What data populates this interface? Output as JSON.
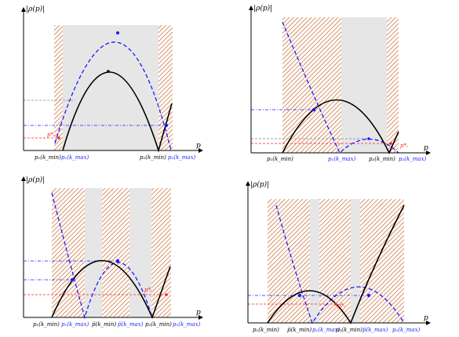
{
  "figure": {
    "panels": [
      {
        "id": "top-left",
        "ylabel": "|ρ(p)|",
        "xlabel": "p",
        "xticks": [
          {
            "text": "p₁(k_min)",
            "color": "#000000"
          },
          {
            "text": "p₁(k_max)",
            "color": "#1a1aff"
          },
          {
            "text": "p₂(k_min)",
            "color": "#000000"
          },
          {
            "text": "p₂(k_max)",
            "color": "#1a1aff"
          }
        ],
        "annotation": "p*ᵣ"
      },
      {
        "id": "top-right",
        "ylabel": "|ρ(p)|",
        "xlabel": "p",
        "xticks": [
          {
            "text": "p₁(k_min)",
            "color": "#000000"
          },
          {
            "text": "p₁(k_max)",
            "color": "#1a1aff"
          },
          {
            "text": "p₂(k_min)",
            "color": "#000000"
          },
          {
            "text": "p₂(k_max)",
            "color": "#1a1aff"
          }
        ],
        "annotation": "p*ᵣ"
      },
      {
        "id": "bottom-left",
        "ylabel": "|ρ(p)|",
        "xlabel": "p",
        "xticks": [
          {
            "text": "p₁(k_min)",
            "color": "#000000"
          },
          {
            "text": "p₁(k_max)",
            "color": "#1a1aff"
          },
          {
            "text": "p̅(k_min)",
            "color": "#000000"
          },
          {
            "text": "p̅(k_max)",
            "color": "#1a1aff"
          },
          {
            "text": "p₂(k_min)",
            "color": "#000000"
          },
          {
            "text": "p₂(k_max)",
            "color": "#1a1aff"
          }
        ],
        "annotation": "p*ᵣ"
      },
      {
        "id": "bottom-right",
        "ylabel": "|ρ(p)|",
        "xlabel": "p",
        "xticks": [
          {
            "text": "p₁(k_min)",
            "color": "#000000"
          },
          {
            "text": "p̅(k_min)",
            "color": "#000000"
          },
          {
            "text": "p₁(k_max)",
            "color": "#1a1aff"
          },
          {
            "text": "p₂(k_min)",
            "color": "#000000"
          },
          {
            "text": "p̅(k_max)",
            "color": "#1a1aff"
          },
          {
            "text": "p₂(k_max)",
            "color": "#1a1aff"
          }
        ],
        "annotation": "p*ᵣ"
      }
    ],
    "colors": {
      "kmin_curve": "#000000",
      "kmax_curve": "#1a1aff",
      "hatch": "#c8642a",
      "gray_region": "#e6e6e6",
      "red_guide": "#ff2020",
      "gray_guide": "#888888"
    }
  }
}
